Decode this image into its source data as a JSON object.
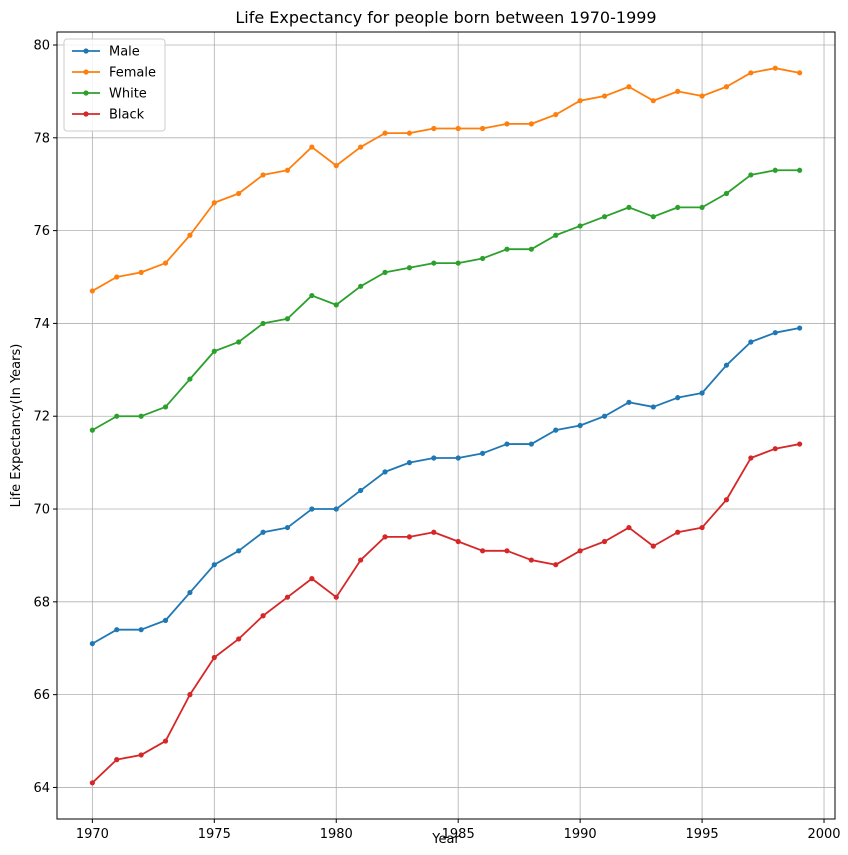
{
  "chart_data": {
    "type": "line",
    "title": "Life Expectancy for people born between 1970-1999",
    "xlabel": "Year",
    "ylabel": "Life Expectancy(In Years)",
    "xlim": [
      1968.55,
      2000.45
    ],
    "ylim": [
      63.32,
      80.28
    ],
    "xticks": [
      1970,
      1975,
      1980,
      1985,
      1990,
      1995,
      2000
    ],
    "yticks": [
      64,
      66,
      68,
      70,
      72,
      74,
      76,
      78,
      80
    ],
    "grid": true,
    "legend_position": "top-left",
    "x": [
      1970,
      1971,
      1972,
      1973,
      1974,
      1975,
      1976,
      1977,
      1978,
      1979,
      1980,
      1981,
      1982,
      1983,
      1984,
      1985,
      1986,
      1987,
      1988,
      1989,
      1990,
      1991,
      1992,
      1993,
      1994,
      1995,
      1996,
      1997,
      1998,
      1999
    ],
    "series": [
      {
        "name": "Male",
        "color": "#1f77b4",
        "values": [
          67.1,
          67.4,
          67.4,
          67.6,
          68.2,
          68.8,
          69.1,
          69.5,
          69.6,
          70.0,
          70.0,
          70.4,
          70.8,
          71.0,
          71.1,
          71.1,
          71.2,
          71.4,
          71.4,
          71.7,
          71.8,
          72.0,
          72.3,
          72.2,
          72.4,
          72.5,
          73.1,
          73.6,
          73.8,
          73.9
        ]
      },
      {
        "name": "Female",
        "color": "#ff7f0e",
        "values": [
          74.7,
          75.0,
          75.1,
          75.3,
          75.9,
          76.6,
          76.8,
          77.2,
          77.3,
          77.8,
          77.4,
          77.8,
          78.1,
          78.1,
          78.2,
          78.2,
          78.2,
          78.3,
          78.3,
          78.5,
          78.8,
          78.9,
          79.1,
          78.8,
          79.0,
          78.9,
          79.1,
          79.4,
          79.5,
          79.4
        ]
      },
      {
        "name": "White",
        "color": "#2ca02c",
        "values": [
          71.7,
          72.0,
          72.0,
          72.2,
          72.8,
          73.4,
          73.6,
          74.0,
          74.1,
          74.6,
          74.4,
          74.8,
          75.1,
          75.2,
          75.3,
          75.3,
          75.4,
          75.6,
          75.6,
          75.9,
          76.1,
          76.3,
          76.5,
          76.3,
          76.5,
          76.5,
          76.8,
          77.2,
          77.3,
          77.3
        ]
      },
      {
        "name": "Black",
        "color": "#d62728",
        "values": [
          64.1,
          64.6,
          64.7,
          65.0,
          66.0,
          66.8,
          67.2,
          67.7,
          68.1,
          68.5,
          68.1,
          68.9,
          69.4,
          69.4,
          69.5,
          69.3,
          69.1,
          69.1,
          68.9,
          68.8,
          69.1,
          69.3,
          69.6,
          69.2,
          69.5,
          69.6,
          70.2,
          71.1,
          71.3,
          71.4
        ]
      }
    ]
  }
}
